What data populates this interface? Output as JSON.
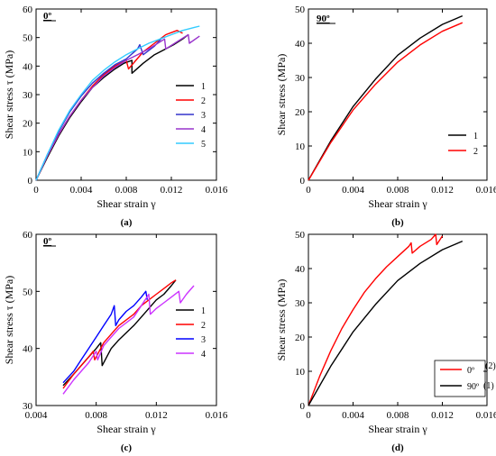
{
  "chart_data": [
    {
      "type": "line",
      "panel_label": "(a)",
      "title": "0º",
      "xlabel": "Shear strain γ",
      "ylabel": "Shear stress τ (MPa)",
      "xlim": [
        0,
        0.016
      ],
      "ylim": [
        0,
        60
      ],
      "xticks": [
        "0",
        "0.004",
        "0.008",
        "0.012",
        "0.016"
      ],
      "yticks": [
        "0",
        "10",
        "20",
        "30",
        "40",
        "50",
        "60"
      ],
      "legend_position": "right",
      "series": [
        {
          "name": "1",
          "color": "#000000",
          "x": [
            0,
            0.001,
            0.002,
            0.003,
            0.004,
            0.005,
            0.006,
            0.007,
            0.0078,
            0.0085,
            0.0085,
            0.0095,
            0.0105,
            0.0115,
            0.0122,
            0.013,
            0.0135
          ],
          "y": [
            0,
            8,
            15.5,
            22,
            27.5,
            32.5,
            36,
            39,
            41,
            42,
            37.5,
            41,
            44,
            46,
            47.5,
            49.5,
            51
          ]
        },
        {
          "name": "2",
          "color": "#ff0000",
          "x": [
            0,
            0.001,
            0.002,
            0.003,
            0.004,
            0.005,
            0.006,
            0.007,
            0.008,
            0.0082,
            0.0095,
            0.0105,
            0.0115,
            0.0125,
            0.013
          ],
          "y": [
            0,
            8.5,
            16,
            22.5,
            28,
            33,
            37,
            40,
            42,
            39,
            45,
            48,
            51,
            52.5,
            51.5
          ]
        },
        {
          "name": "3",
          "color": "#3333cc",
          "x": [
            0,
            0.001,
            0.002,
            0.003,
            0.004,
            0.005,
            0.006,
            0.007,
            0.008,
            0.009,
            0.0092,
            0.0095,
            0.0105,
            0.0112
          ],
          "y": [
            0,
            9,
            17,
            24,
            29.5,
            34,
            37.5,
            40.5,
            42.5,
            46,
            47.5,
            44,
            47,
            50
          ]
        },
        {
          "name": "4",
          "color": "#9933cc",
          "x": [
            0,
            0.001,
            0.002,
            0.003,
            0.004,
            0.005,
            0.006,
            0.007,
            0.008,
            0.009,
            0.01,
            0.0108,
            0.0114,
            0.0115,
            0.0125,
            0.0135,
            0.0136,
            0.0145
          ],
          "y": [
            0,
            8.5,
            16,
            22.5,
            28,
            32.5,
            36.5,
            39.5,
            42,
            44,
            46,
            48,
            49.5,
            46,
            48.5,
            51,
            48,
            50.5
          ]
        },
        {
          "name": "5",
          "color": "#33ccff",
          "x": [
            0,
            0.001,
            0.002,
            0.003,
            0.004,
            0.005,
            0.006,
            0.007,
            0.008,
            0.009,
            0.01,
            0.011,
            0.012,
            0.013,
            0.014,
            0.0145
          ],
          "y": [
            0,
            9,
            17.5,
            24.5,
            30,
            35,
            38.5,
            41.5,
            44,
            46,
            48,
            49.5,
            51,
            52.5,
            53.5,
            54
          ]
        }
      ]
    },
    {
      "type": "line",
      "panel_label": "(b)",
      "title": "90º",
      "xlabel": "Shear strain γ",
      "ylabel": "Shear stress (MPa)",
      "xlim": [
        0,
        0.016
      ],
      "ylim": [
        0,
        50
      ],
      "xticks": [
        "0",
        "0.004",
        "0.008",
        "0.012",
        "0.016"
      ],
      "yticks": [
        "0",
        "10",
        "20",
        "30",
        "40",
        "50"
      ],
      "legend_position": "right",
      "series": [
        {
          "name": "1",
          "color": "#000000",
          "x": [
            0,
            0.002,
            0.004,
            0.006,
            0.008,
            0.01,
            0.012,
            0.0138
          ],
          "y": [
            0,
            11.5,
            21.5,
            29.5,
            36.5,
            41.5,
            45.5,
            48
          ]
        },
        {
          "name": "2",
          "color": "#ff0000",
          "x": [
            0,
            0.002,
            0.004,
            0.006,
            0.008,
            0.01,
            0.012,
            0.0138
          ],
          "y": [
            0,
            11,
            20.5,
            28,
            34.5,
            39.5,
            43.5,
            46
          ]
        }
      ]
    },
    {
      "type": "line",
      "panel_label": "(c)",
      "title": "0º",
      "xlabel": "Shear strain γ",
      "ylabel": "Shear stress τ (MPa)",
      "xlim": [
        0.004,
        0.016
      ],
      "ylim": [
        30,
        60
      ],
      "xticks": [
        "0.004",
        "0.008",
        "0.012",
        "0.016"
      ],
      "yticks": [
        "30",
        "40",
        "50",
        "60"
      ],
      "legend_position": "right",
      "series": [
        {
          "name": "1",
          "color": "#000000",
          "x": [
            0.0058,
            0.0065,
            0.007,
            0.0075,
            0.008,
            0.0083,
            0.0084,
            0.009,
            0.0095,
            0.0105,
            0.011,
            0.0115,
            0.012,
            0.0125,
            0.013,
            0.0133
          ],
          "y": [
            33.5,
            35.5,
            37,
            38.5,
            40,
            41,
            37,
            40,
            41.5,
            44,
            45.5,
            47,
            48.5,
            49.5,
            51,
            52
          ]
        },
        {
          "name": "2",
          "color": "#ff0000",
          "x": [
            0.0058,
            0.0065,
            0.007,
            0.0075,
            0.0078,
            0.0079,
            0.0085,
            0.009,
            0.0095,
            0.0105,
            0.011,
            0.0115,
            0.012,
            0.0125,
            0.013,
            0.0133
          ],
          "y": [
            33,
            35.5,
            37,
            38.5,
            39.5,
            38,
            41,
            42.5,
            44,
            46,
            47.5,
            48.5,
            49.5,
            50.5,
            51.5,
            52
          ]
        },
        {
          "name": "3",
          "color": "#0000ff",
          "x": [
            0.0058,
            0.0065,
            0.007,
            0.0075,
            0.008,
            0.0085,
            0.009,
            0.0092,
            0.0093,
            0.0095,
            0.01,
            0.0105,
            0.011,
            0.0113,
            0.0114
          ],
          "y": [
            34,
            36,
            38,
            40,
            42,
            44,
            46,
            47.5,
            44,
            45,
            46.5,
            47.5,
            49,
            50,
            48.5
          ]
        },
        {
          "name": "4",
          "color": "#cc33ff",
          "x": [
            0.0058,
            0.0065,
            0.007,
            0.0075,
            0.008,
            0.0081,
            0.0085,
            0.009,
            0.0095,
            0.0105,
            0.011,
            0.0115,
            0.0116,
            0.012,
            0.0125,
            0.013,
            0.0135,
            0.0136,
            0.014,
            0.0145
          ],
          "y": [
            32,
            34.5,
            36,
            37.5,
            39.5,
            38,
            40.5,
            42,
            43.5,
            45.5,
            47.5,
            49.5,
            46,
            47,
            48,
            49,
            50,
            48,
            49.5,
            51
          ]
        }
      ]
    },
    {
      "type": "line",
      "panel_label": "(d)",
      "title": "",
      "xlabel": "Shear strain γ",
      "ylabel": "Shear stress (MPa)",
      "xlim": [
        0,
        0.016
      ],
      "ylim": [
        0,
        50
      ],
      "xticks": [
        "0",
        "0.004",
        "0.008",
        "0.012",
        "0.016"
      ],
      "yticks": [
        "0",
        "10",
        "20",
        "30",
        "40",
        "50"
      ],
      "legend_position": "bottom-right",
      "series": [
        {
          "name": "0º",
          "note": "(2)",
          "color": "#ff0000",
          "x": [
            0,
            0.001,
            0.002,
            0.003,
            0.004,
            0.005,
            0.006,
            0.007,
            0.008,
            0.009,
            0.0092,
            0.0093,
            0.01,
            0.011,
            0.0114,
            0.0115,
            0.012
          ],
          "y": [
            0,
            8.5,
            16,
            22.5,
            28,
            33,
            37,
            40.5,
            43.5,
            46.5,
            47.5,
            44.5,
            46.5,
            48.5,
            50,
            47,
            49.5
          ]
        },
        {
          "name": "90º",
          "note": "(1)",
          "color": "#000000",
          "x": [
            0,
            0.002,
            0.004,
            0.006,
            0.008,
            0.01,
            0.012,
            0.0138
          ],
          "y": [
            0,
            11.5,
            21.5,
            29.5,
            36.5,
            41.5,
            45.5,
            48
          ]
        }
      ]
    }
  ]
}
